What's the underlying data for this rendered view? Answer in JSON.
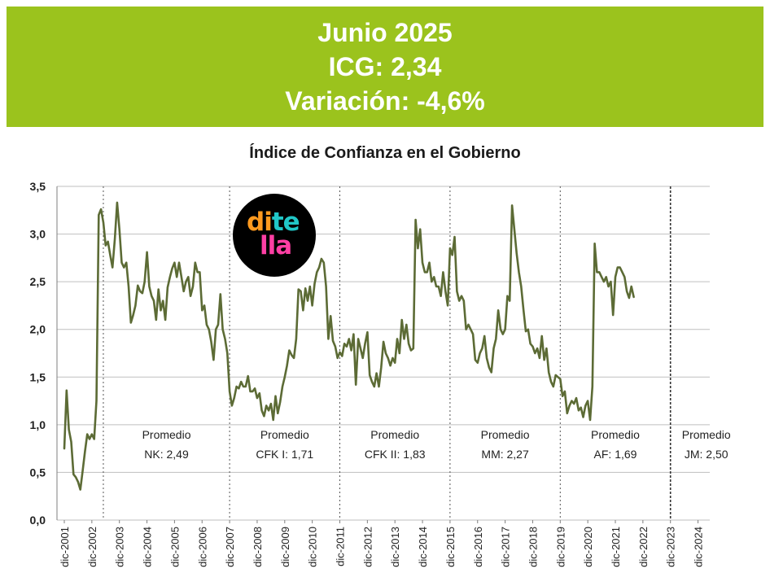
{
  "banner": {
    "line1": "Junio 2025",
    "line2": "ICG: 2,34",
    "line3": "Variación: -4,6%"
  },
  "logo": {
    "text": "ditella"
  },
  "colors": {
    "banner": "#9bc31d",
    "line": "#5c6b35",
    "grid": "#bfbfbf"
  },
  "chart_data": {
    "type": "line",
    "title": "Índice de Confianza en el Gobierno",
    "ylim": [
      0,
      3.5
    ],
    "yticks": [
      "0,0",
      "0,5",
      "1,0",
      "1,5",
      "2,0",
      "2,5",
      "3,0",
      "3,5"
    ],
    "xtick_labels": [
      "dic-2001",
      "dic-2002",
      "dic-2003",
      "dic-2004",
      "dic-2005",
      "dic-2006",
      "dic-2007",
      "dic-2008",
      "dic-2009",
      "dic-2010",
      "dic-2011",
      "dic-2012",
      "dic-2013",
      "dic-2014",
      "dic-2015",
      "dic-2016",
      "dic-2017",
      "dic-2018",
      "dic-2019",
      "dic-2020",
      "dic-2021",
      "dic-2022",
      "dic-2023",
      "dic-2024"
    ],
    "grid": true,
    "period_dividers": [
      "may-2003",
      "dic-2007",
      "dic-2011",
      "dic-2015",
      "dic-2019",
      "dic-2023"
    ],
    "annotations": [
      {
        "line1": "Promedio",
        "line2": "NK: 2,49"
      },
      {
        "line1": "Promedio",
        "line2": "CFK I: 1,71"
      },
      {
        "line1": "Promedio",
        "line2": "CFK II: 1,83"
      },
      {
        "line1": "Promedio",
        "line2": "MM: 2,27"
      },
      {
        "line1": "Promedio",
        "line2": "AF: 1,69"
      },
      {
        "line1": "Promedio",
        "line2": "JM: 2,50"
      }
    ],
    "series": [
      {
        "x_start": "dic-2001",
        "x_step": "month",
        "values": [
          0.75,
          1.36,
          0.95,
          0.82,
          0.48,
          0.45,
          0.4,
          0.32,
          0.52,
          0.72,
          0.9,
          0.85,
          0.9,
          0.85,
          1.25,
          3.2,
          3.26,
          3.12,
          2.88,
          2.92,
          2.78,
          2.65,
          2.95,
          3.33,
          3.05,
          2.7,
          2.65,
          2.7,
          2.45,
          2.07,
          2.15,
          2.25,
          2.46,
          2.4,
          2.38,
          2.5,
          2.81,
          2.45,
          2.35,
          2.3,
          2.1,
          2.42,
          2.2,
          2.3,
          2.1,
          2.44,
          2.55,
          2.64,
          2.7,
          2.55,
          2.7,
          2.55,
          2.4,
          2.5,
          2.55,
          2.35,
          2.45,
          2.7,
          2.6,
          2.6,
          2.2,
          2.25,
          2.05,
          2.0,
          1.87,
          1.68,
          2.0,
          2.05,
          2.37,
          2.0,
          1.9,
          1.75,
          1.35,
          1.2,
          1.28,
          1.4,
          1.38,
          1.45,
          1.4,
          1.4,
          1.51,
          1.35,
          1.35,
          1.38,
          1.28,
          1.33,
          1.15,
          1.09,
          1.2,
          1.15,
          1.22,
          1.05,
          1.3,
          1.12,
          1.24,
          1.4,
          1.5,
          1.62,
          1.78,
          1.73,
          1.7,
          1.9,
          2.42,
          2.4,
          2.2,
          2.43,
          2.3,
          2.45,
          2.25,
          2.48,
          2.6,
          2.65,
          2.74,
          2.7,
          2.45,
          1.9,
          2.14,
          1.88,
          1.82,
          1.7,
          1.76,
          1.72,
          1.85,
          1.82,
          1.9,
          1.78,
          1.95,
          1.42,
          1.9,
          1.8,
          1.7,
          1.85,
          1.97,
          1.52,
          1.45,
          1.4,
          1.54,
          1.4,
          1.6,
          1.87,
          1.75,
          1.7,
          1.62,
          1.7,
          1.65,
          1.9,
          1.75,
          2.1,
          1.9,
          2.05,
          1.85,
          1.78,
          1.8,
          3.15,
          2.85,
          3.05,
          2.7,
          2.6,
          2.6,
          2.7,
          2.5,
          2.55,
          2.45,
          2.45,
          2.35,
          2.6,
          2.4,
          2.25,
          2.85,
          2.78,
          2.97,
          2.4,
          2.3,
          2.35,
          2.3,
          2.0,
          2.05,
          2.0,
          1.95,
          1.68,
          1.65,
          1.75,
          1.8,
          1.93,
          1.7,
          1.6,
          1.55,
          1.8,
          1.9,
          2.2,
          2.0,
          1.95,
          2.0,
          2.35,
          2.3,
          3.3,
          3.05,
          2.8,
          2.6,
          2.45,
          2.2,
          1.98,
          2.0,
          1.85,
          1.82,
          1.75,
          1.8,
          1.7,
          1.93,
          1.68,
          1.8,
          1.55,
          1.45,
          1.4,
          1.52,
          1.5,
          1.48,
          1.3,
          1.35,
          1.12,
          1.2,
          1.25,
          1.22,
          1.28,
          1.15,
          1.18,
          1.08,
          1.2,
          1.25,
          1.05,
          1.4,
          2.9,
          2.6,
          2.6,
          2.55,
          2.5,
          2.55,
          2.45,
          2.5,
          2.15,
          2.55,
          2.65,
          2.65,
          2.6,
          2.55,
          2.4,
          2.33,
          2.45,
          2.34
        ]
      }
    ]
  }
}
